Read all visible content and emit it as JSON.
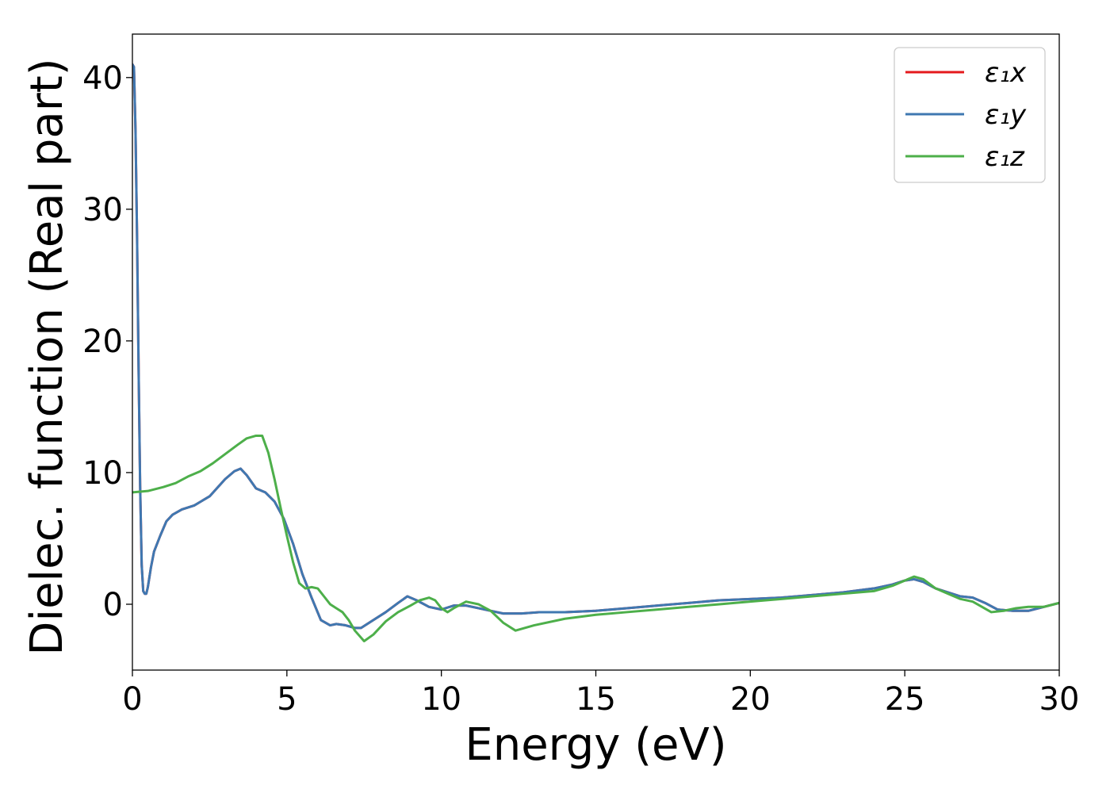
{
  "chart_data": {
    "type": "line",
    "xlabel": "Energy (eV)",
    "ylabel": "Dielec. function (Real part)",
    "xlim": [
      0,
      30
    ],
    "ylim": [
      -5,
      43.3
    ],
    "xticks": [
      0,
      5,
      10,
      15,
      20,
      25,
      30
    ],
    "yticks": [
      0,
      10,
      20,
      30,
      40
    ],
    "grid": false,
    "legend_position": "top-right",
    "series": [
      {
        "name": "ε₁x",
        "color": "#e41a1c",
        "x": [
          0,
          0.05,
          0.1,
          0.15,
          0.2,
          0.25,
          0.3,
          0.35,
          0.4,
          0.45,
          0.5,
          0.6,
          0.7,
          0.9,
          1.1,
          1.3,
          1.6,
          2.0,
          2.5,
          3.0,
          3.3,
          3.5,
          3.7,
          4.0,
          4.3,
          4.6,
          4.9,
          5.2,
          5.5,
          5.8,
          6.1,
          6.4,
          6.6,
          6.9,
          7.2,
          7.4,
          7.8,
          8.2,
          8.6,
          8.9,
          9.2,
          9.6,
          10.0,
          10.4,
          10.8,
          11.2,
          11.6,
          12.0,
          12.6,
          13.2,
          14.0,
          15.0,
          16.0,
          17.0,
          18.0,
          19.0,
          20.0,
          21.0,
          22.0,
          23.0,
          24.0,
          24.6,
          25.0,
          25.3,
          25.6,
          26.0,
          26.4,
          26.8,
          27.2,
          27.6,
          28.0,
          28.5,
          29.0,
          29.5,
          30.0
        ],
        "y": [
          41.0,
          40.8,
          36.0,
          28.0,
          18.0,
          9.0,
          3.0,
          1.0,
          0.8,
          0.8,
          1.3,
          2.8,
          4.0,
          5.2,
          6.3,
          6.8,
          7.2,
          7.5,
          8.2,
          9.5,
          10.1,
          10.3,
          9.8,
          8.8,
          8.5,
          7.8,
          6.5,
          4.6,
          2.3,
          0.5,
          -1.2,
          -1.6,
          -1.5,
          -1.6,
          -1.8,
          -1.8,
          -1.2,
          -0.6,
          0.1,
          0.6,
          0.3,
          -0.2,
          -0.4,
          -0.1,
          -0.1,
          -0.3,
          -0.5,
          -0.7,
          -0.7,
          -0.6,
          -0.6,
          -0.5,
          -0.3,
          -0.1,
          0.1,
          0.3,
          0.4,
          0.5,
          0.7,
          0.9,
          1.2,
          1.5,
          1.8,
          1.9,
          1.7,
          1.2,
          0.9,
          0.6,
          0.5,
          0.1,
          -0.4,
          -0.5,
          -0.5,
          -0.2,
          0.1
        ]
      },
      {
        "name": "ε₁y",
        "color": "#3f78b1",
        "x": [
          0,
          0.05,
          0.1,
          0.15,
          0.2,
          0.25,
          0.3,
          0.35,
          0.4,
          0.45,
          0.5,
          0.6,
          0.7,
          0.9,
          1.1,
          1.3,
          1.6,
          2.0,
          2.5,
          3.0,
          3.3,
          3.5,
          3.7,
          4.0,
          4.3,
          4.6,
          4.9,
          5.2,
          5.5,
          5.8,
          6.1,
          6.4,
          6.6,
          6.9,
          7.2,
          7.4,
          7.8,
          8.2,
          8.6,
          8.9,
          9.2,
          9.6,
          10.0,
          10.4,
          10.8,
          11.2,
          11.6,
          12.0,
          12.6,
          13.2,
          14.0,
          15.0,
          16.0,
          17.0,
          18.0,
          19.0,
          20.0,
          21.0,
          22.0,
          23.0,
          24.0,
          24.6,
          25.0,
          25.3,
          25.6,
          26.0,
          26.4,
          26.8,
          27.2,
          27.6,
          28.0,
          28.5,
          29.0,
          29.5,
          30.0
        ],
        "y": [
          41.0,
          40.8,
          36.0,
          28.0,
          18.0,
          9.0,
          3.0,
          1.0,
          0.8,
          0.8,
          1.3,
          2.8,
          4.0,
          5.2,
          6.3,
          6.8,
          7.2,
          7.5,
          8.2,
          9.5,
          10.1,
          10.3,
          9.8,
          8.8,
          8.5,
          7.8,
          6.5,
          4.6,
          2.3,
          0.5,
          -1.2,
          -1.6,
          -1.5,
          -1.6,
          -1.8,
          -1.8,
          -1.2,
          -0.6,
          0.1,
          0.6,
          0.3,
          -0.2,
          -0.4,
          -0.1,
          -0.1,
          -0.3,
          -0.5,
          -0.7,
          -0.7,
          -0.6,
          -0.6,
          -0.5,
          -0.3,
          -0.1,
          0.1,
          0.3,
          0.4,
          0.5,
          0.7,
          0.9,
          1.2,
          1.5,
          1.8,
          1.9,
          1.7,
          1.2,
          0.9,
          0.6,
          0.5,
          0.1,
          -0.4,
          -0.5,
          -0.5,
          -0.2,
          0.1
        ]
      },
      {
        "name": "ε₁z",
        "color": "#4daf4a",
        "x": [
          0,
          0.5,
          1.0,
          1.4,
          1.8,
          2.2,
          2.6,
          3.0,
          3.4,
          3.7,
          4.0,
          4.2,
          4.4,
          4.6,
          4.8,
          5.0,
          5.2,
          5.4,
          5.6,
          5.8,
          6.0,
          6.2,
          6.4,
          6.6,
          6.8,
          7.0,
          7.2,
          7.5,
          7.8,
          8.2,
          8.6,
          9.0,
          9.3,
          9.6,
          9.8,
          10.0,
          10.2,
          10.4,
          10.8,
          11.2,
          11.6,
          12.0,
          12.4,
          13.0,
          14.0,
          15.0,
          16.0,
          17.0,
          18.0,
          19.0,
          20.0,
          21.0,
          22.0,
          23.0,
          24.0,
          24.6,
          25.0,
          25.3,
          25.6,
          26.0,
          26.4,
          26.8,
          27.2,
          27.5,
          27.8,
          28.2,
          28.6,
          29.0,
          29.5,
          30.0
        ],
        "y": [
          8.5,
          8.6,
          8.9,
          9.2,
          9.7,
          10.1,
          10.7,
          11.4,
          12.1,
          12.6,
          12.8,
          12.8,
          11.5,
          9.5,
          7.3,
          5.2,
          3.2,
          1.6,
          1.2,
          1.3,
          1.2,
          0.6,
          0.0,
          -0.3,
          -0.6,
          -1.2,
          -2.0,
          -2.8,
          -2.3,
          -1.3,
          -0.6,
          -0.1,
          0.3,
          0.5,
          0.3,
          -0.3,
          -0.6,
          -0.3,
          0.2,
          0.0,
          -0.5,
          -1.4,
          -2.0,
          -1.6,
          -1.1,
          -0.8,
          -0.6,
          -0.4,
          -0.2,
          0.0,
          0.2,
          0.4,
          0.6,
          0.8,
          1.0,
          1.4,
          1.8,
          2.1,
          1.9,
          1.2,
          0.8,
          0.4,
          0.2,
          -0.2,
          -0.6,
          -0.5,
          -0.3,
          -0.2,
          -0.2,
          0.1
        ]
      }
    ]
  }
}
